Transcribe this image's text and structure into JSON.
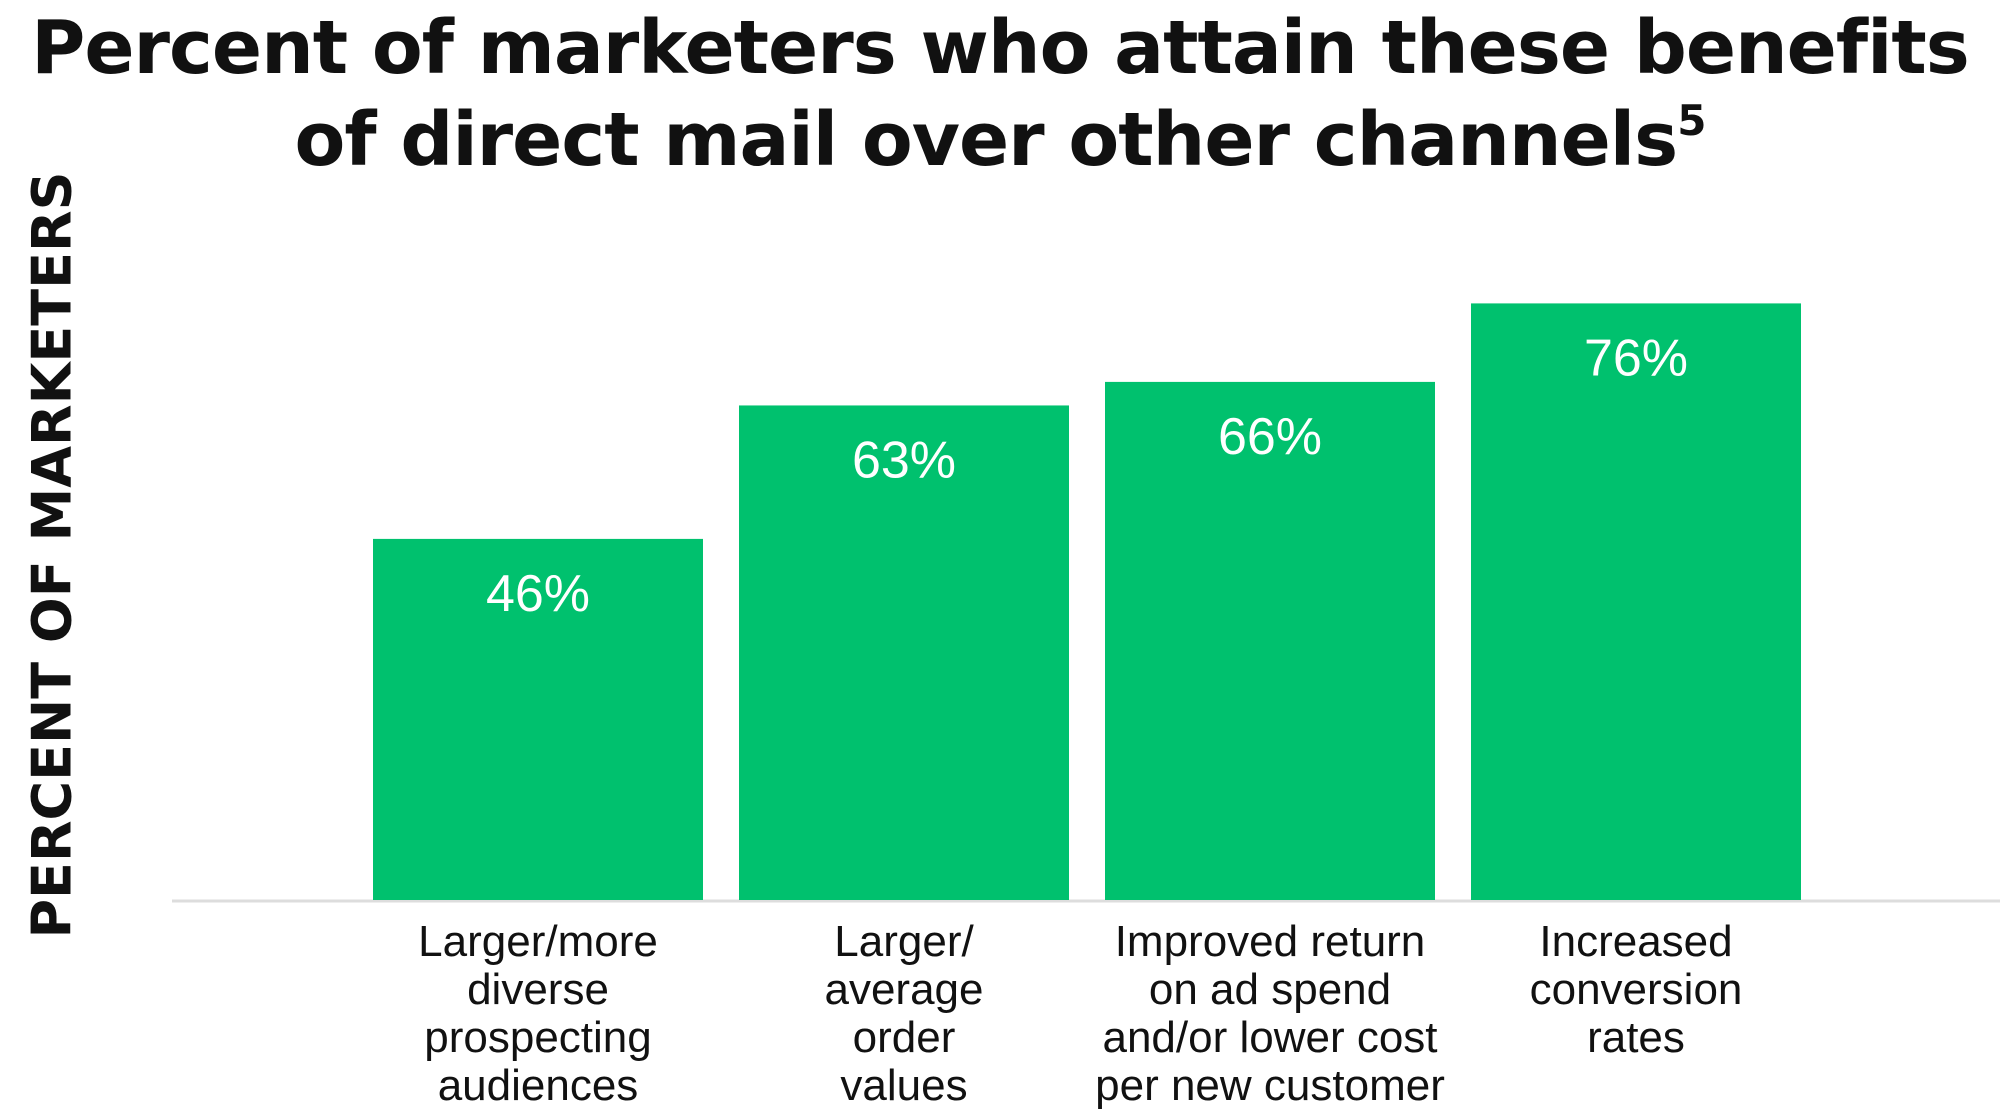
{
  "chart_data": {
    "type": "bar",
    "title_lines": [
      "Percent of marketers who attain these benefits",
      "of direct mail over other channels"
    ],
    "title_superscript": "5",
    "xlabel": "",
    "ylabel": "PERCENT OF MARKETERS",
    "categories": [
      "Larger/more\ndiverse\nprospecting\naudiences",
      "Larger/\naverage\norder\nvalues",
      "Improved return\non ad spend\nand/or lower cost\nper new customer",
      "Increased\nconversion\nrates"
    ],
    "values": [
      46,
      63,
      66,
      76
    ],
    "data_labels": [
      "46%",
      "63%",
      "66%",
      "76%"
    ],
    "ylim": [
      0,
      100
    ],
    "grid": false,
    "legend": "none",
    "colors": {
      "bar": "#00c16e",
      "bar_label": "#ffffff",
      "baseline": "#dddddd",
      "text": "#111111"
    }
  }
}
